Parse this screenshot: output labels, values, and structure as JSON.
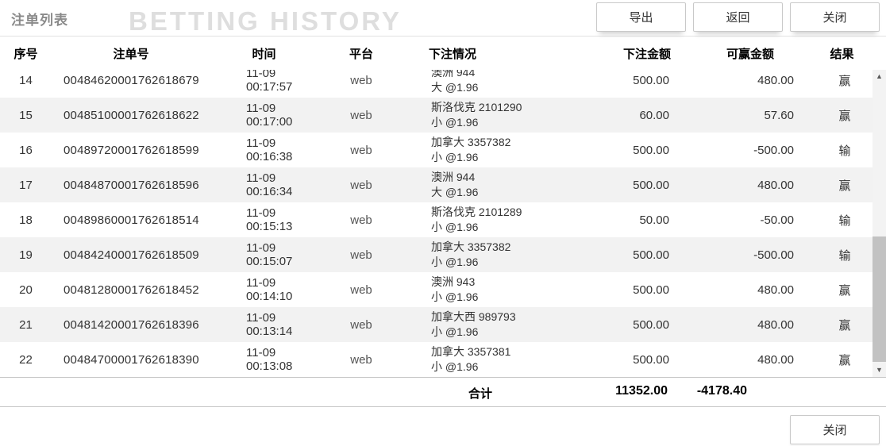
{
  "header": {
    "title": "注单列表",
    "watermark": "BETTING HISTORY",
    "buttons": {
      "export": "导出",
      "back": "返回",
      "close": "关闭"
    }
  },
  "icons": {
    "scroll_up": "▲",
    "scroll_down": "▼"
  },
  "table": {
    "columns": {
      "seq": "序号",
      "bet_no": "注单号",
      "time": "时间",
      "platform": "平台",
      "detail": "下注情况",
      "amount": "下注金额",
      "winnable": "可赢金额",
      "result": "结果"
    },
    "rows": [
      {
        "seq": "14",
        "bet_no": "00484620001762618679",
        "time": "11-09 00:17:57",
        "platform": "web",
        "detail_line1": "澳洲 944",
        "detail_line2": "大 @1.96",
        "amount": "500.00",
        "winnable": "480.00",
        "result": "赢"
      },
      {
        "seq": "15",
        "bet_no": "00485100001762618622",
        "time": "11-09 00:17:00",
        "platform": "web",
        "detail_line1": "斯洛伐克 2101290",
        "detail_line2": "小 @1.96",
        "amount": "60.00",
        "winnable": "57.60",
        "result": "赢"
      },
      {
        "seq": "16",
        "bet_no": "00489720001762618599",
        "time": "11-09 00:16:38",
        "platform": "web",
        "detail_line1": "加拿大 3357382",
        "detail_line2": "小 @1.96",
        "amount": "500.00",
        "winnable": "-500.00",
        "result": "输"
      },
      {
        "seq": "17",
        "bet_no": "00484870001762618596",
        "time": "11-09 00:16:34",
        "platform": "web",
        "detail_line1": "澳洲 944",
        "detail_line2": "大 @1.96",
        "amount": "500.00",
        "winnable": "480.00",
        "result": "赢"
      },
      {
        "seq": "18",
        "bet_no": "00489860001762618514",
        "time": "11-09 00:15:13",
        "platform": "web",
        "detail_line1": "斯洛伐克 2101289",
        "detail_line2": "小 @1.96",
        "amount": "50.00",
        "winnable": "-50.00",
        "result": "输"
      },
      {
        "seq": "19",
        "bet_no": "00484240001762618509",
        "time": "11-09 00:15:07",
        "platform": "web",
        "detail_line1": "加拿大 3357382",
        "detail_line2": "小 @1.96",
        "amount": "500.00",
        "winnable": "-500.00",
        "result": "输"
      },
      {
        "seq": "20",
        "bet_no": "00481280001762618452",
        "time": "11-09 00:14:10",
        "platform": "web",
        "detail_line1": "澳洲 943",
        "detail_line2": "小 @1.96",
        "amount": "500.00",
        "winnable": "480.00",
        "result": "赢"
      },
      {
        "seq": "21",
        "bet_no": "00481420001762618396",
        "time": "11-09 00:13:14",
        "platform": "web",
        "detail_line1": "加拿大西 989793",
        "detail_line2": "小 @1.96",
        "amount": "500.00",
        "winnable": "480.00",
        "result": "赢"
      },
      {
        "seq": "22",
        "bet_no": "00484700001762618390",
        "time": "11-09 00:13:08",
        "platform": "web",
        "detail_line1": "加拿大 3357381",
        "detail_line2": "小 @1.96",
        "amount": "500.00",
        "winnable": "480.00",
        "result": "赢"
      }
    ]
  },
  "summary": {
    "label": "合计",
    "total_amount": "11352.00",
    "total_winnable": "-4178.40"
  },
  "footer": {
    "close": "关闭"
  },
  "colors": {
    "row_alt_bg": "#f2f2f2",
    "title_gray": "#8a8a8a",
    "watermark_gray": "#dedede",
    "scrollbar_thumb": "#c2c2c2",
    "border_gray": "#c6c6c6"
  }
}
